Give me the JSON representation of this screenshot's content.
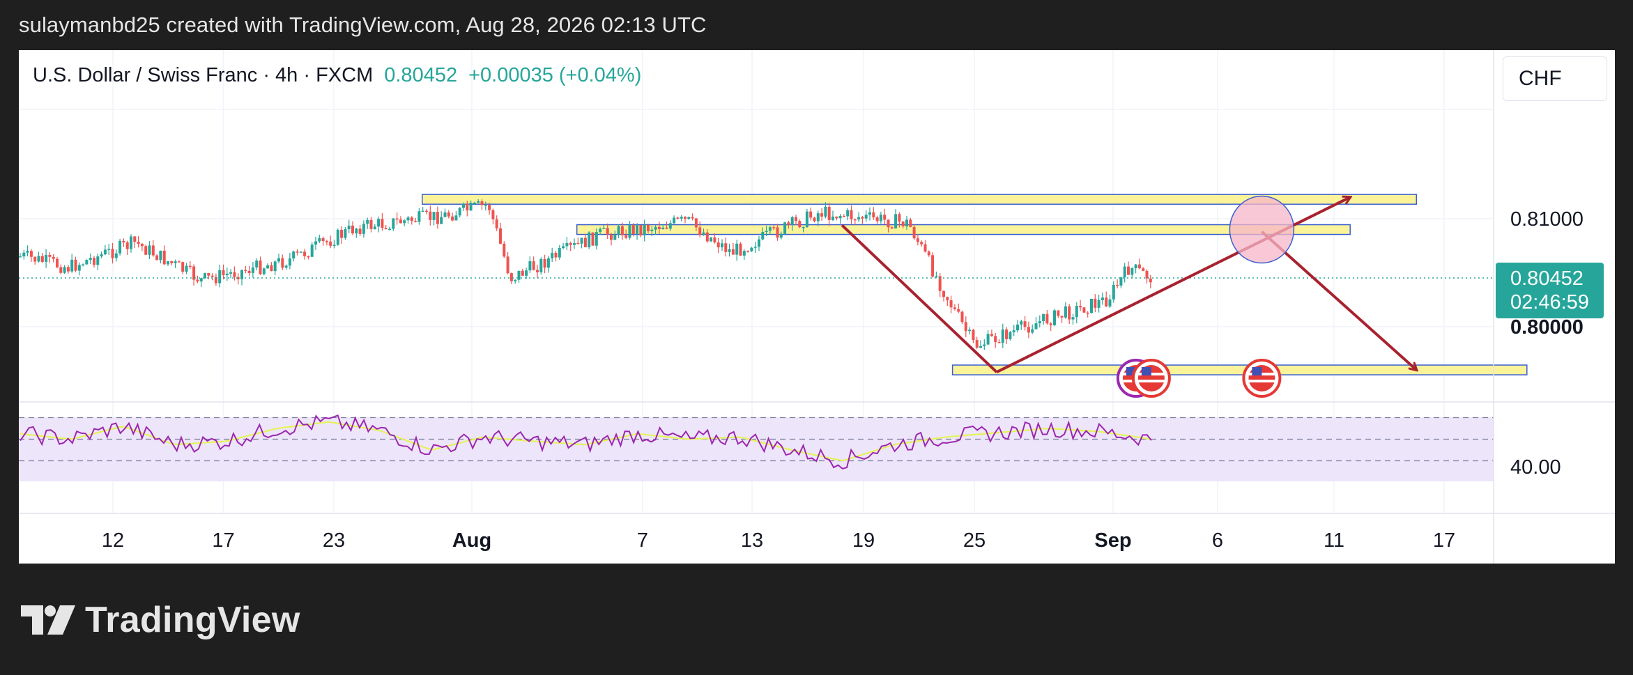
{
  "header": {
    "caption": "sulaymanbd25 created with TradingView.com, Aug 28, 2026 02:13 UTC"
  },
  "symbol_bar": {
    "symbol": "U.S. Dollar / Swiss Franc · 4h · FXCM",
    "price": "0.80452",
    "change": "+0.00035 (+0.04%)"
  },
  "currency_button": "CHF",
  "footer": {
    "brand": "TradingView"
  },
  "colors": {
    "bull": "#26a69a",
    "bear": "#ef5350",
    "rsi": "#9c27b0",
    "rsi_ma": "#e5f25c",
    "zone_fill": "#fbf39a",
    "zone_border": "#3a5fd0",
    "arrow": "#a8222f",
    "price_tag": "#26a69a"
  },
  "chart_data": {
    "type": "candlestick",
    "symbol": "USD/CHF",
    "timeframe": "4h",
    "x_tick_labels": [
      "12",
      "17",
      "23",
      "Aug",
      "7",
      "13",
      "19",
      "25",
      "Sep",
      "6",
      "11",
      "17"
    ],
    "y_tick_labels": [
      "0.81000",
      "0.80000"
    ],
    "price_range": [
      0.7958,
      0.8138
    ],
    "last_price": {
      "value": "0.80452",
      "countdown": "02:46:59"
    },
    "approx_close_path": [
      {
        "date": "Jul 8",
        "close": 0.8065
      },
      {
        "date": "Jul 10",
        "close": 0.8055
      },
      {
        "date": "Jul 13",
        "close": 0.8078
      },
      {
        "date": "Jul 16",
        "close": 0.8043
      },
      {
        "date": "Jul 20",
        "close": 0.8062
      },
      {
        "date": "Jul 23",
        "close": 0.8092
      },
      {
        "date": "Jul 27",
        "close": 0.8103
      },
      {
        "date": "Jul 29",
        "close": 0.8113
      },
      {
        "date": "Jul 30",
        "close": 0.8045
      },
      {
        "date": "Aug 3",
        "close": 0.8085
      },
      {
        "date": "Aug 7",
        "close": 0.8098
      },
      {
        "date": "Aug 9",
        "close": 0.8069
      },
      {
        "date": "Aug 13",
        "close": 0.8106
      },
      {
        "date": "Aug 17",
        "close": 0.8096
      },
      {
        "date": "Aug 19",
        "close": 0.8018
      },
      {
        "date": "Aug 20",
        "close": 0.7982
      },
      {
        "date": "Aug 23",
        "close": 0.8005
      },
      {
        "date": "Aug 26",
        "close": 0.8025
      },
      {
        "date": "Aug 27",
        "close": 0.8055
      },
      {
        "date": "Aug 28",
        "close": 0.80452
      }
    ],
    "zones": [
      {
        "name": "upper-resistance",
        "price": 0.8118,
        "from": "Jul 26",
        "to": "Sep 9"
      },
      {
        "name": "middle-resistance",
        "price": 0.809,
        "from": "Aug 2",
        "to": "Sep 6"
      },
      {
        "name": "support",
        "price": 0.796,
        "from": "Aug 19",
        "to": "Sep 14"
      }
    ],
    "projection_arrows": [
      {
        "from": {
          "date": "Aug 14",
          "price": 0.8094
        },
        "to": {
          "date": "Aug 21",
          "price": 0.7958
        }
      },
      {
        "from": {
          "date": "Aug 21",
          "price": 0.7958
        },
        "to": {
          "date": "Sep 6",
          "price": 0.812
        }
      },
      {
        "from": {
          "date": "Sep 2",
          "price": 0.8088
        },
        "to": {
          "date": "Sep 9",
          "price": 0.796
        }
      }
    ],
    "highlight_circle": {
      "date": "Sep 2",
      "price": 0.809
    },
    "event_markers": [
      {
        "date": "Aug 28",
        "count": 2
      },
      {
        "date": "Sep 2",
        "count": 1
      }
    ],
    "rsi": {
      "label": "40.00",
      "bands": [
        30,
        50,
        70
      ],
      "approx_values": [
        55,
        50,
        62,
        45,
        48,
        60,
        66,
        58,
        40,
        52,
        48,
        45,
        55,
        50,
        52,
        40,
        30,
        45,
        52,
        56,
        60,
        57,
        50
      ]
    }
  }
}
